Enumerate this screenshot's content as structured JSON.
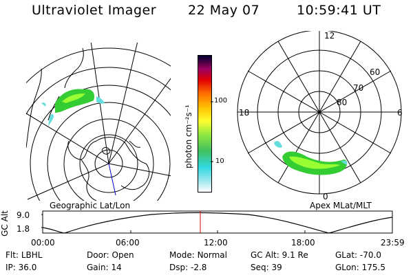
{
  "header": {
    "title": "Ultraviolet Imager",
    "date": "22 May 07",
    "time": "10:59:41 UT"
  },
  "geo_panel": {
    "label": "Geographic Lat/Lon"
  },
  "mag_panel": {
    "label": "Apex MLat/MLT",
    "mlt_labels": {
      "top": "12",
      "left": "18",
      "right": "6",
      "bottom": "0"
    },
    "lat_labels": [
      "60",
      "70",
      "80"
    ]
  },
  "colorbar": {
    "unit": "photon cm⁻²s⁻¹",
    "ticks": [
      "100",
      "10"
    ]
  },
  "altitude_plot": {
    "ylabel": "GC Alt",
    "yticks": [
      "9.0",
      "1.8"
    ],
    "xticks": [
      "00:00",
      "06:00",
      "12:00",
      "18:00",
      "23:59"
    ],
    "current_time_color": "#d00000"
  },
  "status": {
    "row1": [
      {
        "key": "Flt:",
        "value": "LBHL"
      },
      {
        "key": "Door:",
        "value": "Open"
      },
      {
        "key": "Mode:",
        "value": "Normal"
      },
      {
        "key": "GC Alt:",
        "value": "9.1 Re"
      },
      {
        "key": "GLat:",
        "value": "-70.0"
      }
    ],
    "row2": [
      {
        "key": "IP:",
        "value": "36.0"
      },
      {
        "key": "Gain:",
        "value": "14"
      },
      {
        "key": "Dsp:",
        "value": "-2.8"
      },
      {
        "key": "Seq:",
        "value": "39"
      },
      {
        "key": "GLon:",
        "value": "175.5"
      }
    ]
  }
}
